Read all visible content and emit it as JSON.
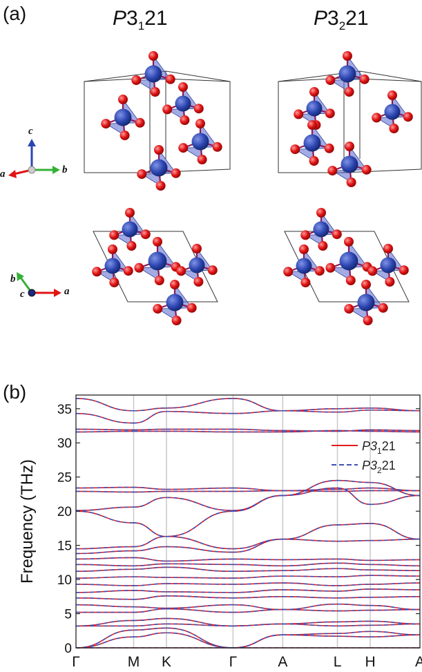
{
  "figure": {
    "panel_a_label": "(a)",
    "panel_b_label": "(b)",
    "structures": [
      {
        "space_group": "P",
        "sg_num": "3",
        "sg_sub": "1",
        "sg_tail": "21"
      },
      {
        "space_group": "P",
        "sg_num": "3",
        "sg_sub": "2",
        "sg_tail": "21"
      }
    ],
    "axes_side_view": {
      "up": "c",
      "left": "a",
      "right": "b"
    },
    "axes_top_view": {
      "up": "b",
      "center": "c",
      "right": "a"
    },
    "colors": {
      "silicon": "#2b45b0",
      "oxygen": "#e01414",
      "tetra": "#5566cc"
    }
  },
  "chart_data": {
    "type": "line",
    "title": "",
    "xlabel": "",
    "ylabel": "Frequency (THz)",
    "ylim": [
      0,
      37
    ],
    "yticks": [
      0,
      5,
      10,
      15,
      20,
      25,
      30,
      35
    ],
    "kpath": [
      "Γ",
      "M",
      "K",
      "Γ",
      "A",
      "L",
      "H",
      "A"
    ],
    "kpath_positions": [
      0,
      0.58,
      0.91,
      1.58,
      2.08,
      2.63,
      2.96,
      3.46
    ],
    "legend": {
      "position": "right-middle",
      "entries": [
        {
          "label_main": "P3",
          "label_sub": "1",
          "label_tail": "21",
          "color": "#e31a1c",
          "style": "solid"
        },
        {
          "label_main": "P3",
          "label_sub": "2",
          "label_tail": "21",
          "color": "#3f4fb4",
          "style": "dashed"
        }
      ]
    },
    "series": [
      {
        "name": "P3121",
        "color": "#e31a1c",
        "style": "solid"
      },
      {
        "name": "P3221",
        "color": "#3f4fb4",
        "style": "dashed"
      }
    ],
    "bands": [
      [
        0,
        0,
        0,
        0,
        0,
        0,
        0,
        0
      ],
      [
        0,
        1.6,
        2.2,
        0,
        1.9,
        1.7,
        1.6,
        1.9
      ],
      [
        0,
        2.6,
        2.9,
        0,
        1.9,
        2.1,
        2.4,
        1.9
      ],
      [
        3.2,
        3.2,
        3.5,
        3.2,
        3.5,
        3.2,
        3.3,
        3.5
      ],
      [
        3.2,
        4.0,
        4.3,
        3.2,
        3.5,
        3.8,
        3.9,
        3.5
      ],
      [
        5.2,
        5.2,
        5.7,
        5.2,
        5.6,
        5.4,
        5.5,
        5.6
      ],
      [
        6.3,
        6.0,
        5.8,
        6.3,
        5.6,
        6.4,
        6.2,
        5.6
      ],
      [
        7.3,
        7.1,
        7.6,
        7.3,
        7.5,
        7.3,
        7.4,
        7.5
      ],
      [
        8.1,
        8.4,
        8.2,
        8.1,
        8.5,
        8.3,
        8.6,
        8.5
      ],
      [
        9.3,
        9.1,
        9.4,
        9.3,
        9.5,
        9.1,
        9.3,
        9.5
      ],
      [
        10.2,
        10.4,
        10.3,
        10.2,
        10.5,
        10.4,
        10.6,
        10.5
      ],
      [
        11.2,
        11.5,
        11.8,
        11.2,
        11.3,
        11.6,
        11.4,
        11.3
      ],
      [
        12.2,
        12.0,
        12.3,
        12.2,
        12.0,
        12.4,
        12.2,
        12.0
      ],
      [
        13.0,
        13.2,
        12.7,
        13.0,
        12.9,
        13.0,
        12.8,
        12.9
      ],
      [
        13.8,
        14.2,
        14.8,
        14.0,
        15.9,
        15.6,
        15.7,
        15.9
      ],
      [
        14.5,
        14.8,
        16.3,
        14.5,
        15.9,
        18.0,
        18.2,
        15.9
      ],
      [
        20.0,
        18.3,
        16.3,
        20.0,
        22.3,
        23.4,
        21.0,
        22.3
      ],
      [
        20.1,
        20.6,
        22.0,
        20.1,
        22.3,
        24.5,
        24.2,
        22.3
      ],
      [
        22.9,
        22.8,
        22.9,
        22.9,
        23.0,
        22.9,
        23.0,
        23.0
      ],
      [
        23.4,
        23.5,
        23.2,
        23.4,
        23.0,
        23.2,
        23.4,
        23.0
      ],
      [
        31.6,
        31.7,
        31.7,
        31.6,
        31.6,
        31.8,
        31.7,
        31.6
      ],
      [
        32.0,
        31.9,
        32.0,
        32.0,
        31.8,
        31.7,
        31.9,
        31.8
      ],
      [
        34.3,
        32.9,
        34.6,
        34.3,
        34.7,
        34.5,
        34.8,
        34.7
      ],
      [
        36.5,
        34.7,
        35.1,
        36.5,
        34.7,
        35.0,
        35.1,
        34.7
      ]
    ]
  }
}
